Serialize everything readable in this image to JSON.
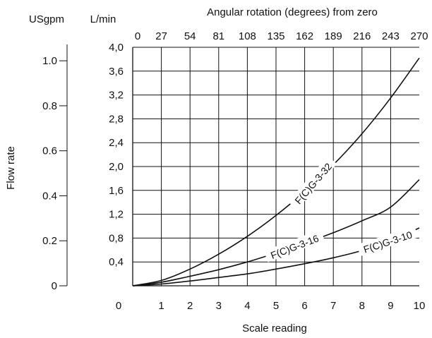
{
  "chart_data": {
    "type": "line",
    "title": "",
    "xlabel": "Scale reading",
    "x2label": "Angular rotation (degrees) from zero",
    "ylabel": "Flow rate",
    "y_left_unit": "USgpm",
    "y_right_unit": "L/min",
    "xlim": [
      0,
      10
    ],
    "ylim": [
      0,
      4.0
    ],
    "grid": true,
    "x_ticks": [
      "0",
      "1",
      "2",
      "3",
      "4",
      "5",
      "6",
      "7",
      "8",
      "9",
      "10"
    ],
    "x2_ticks": [
      "0",
      "27",
      "54",
      "81",
      "108",
      "135",
      "162",
      "189",
      "216",
      "243",
      "270"
    ],
    "y_ticks": [
      "0,4",
      "0,8",
      "1,2",
      "1,6",
      "2,0",
      "2,4",
      "2,8",
      "3,2",
      "3,6",
      "4,0"
    ],
    "usgpm_ticks": [
      {
        "label": "0",
        "value": 0
      },
      {
        "label": "0.2",
        "value": 0.2
      },
      {
        "label": "0.4",
        "value": 0.4
      },
      {
        "label": "0.6",
        "value": 0.6
      },
      {
        "label": "0.8",
        "value": 0.8
      },
      {
        "label": "1.0",
        "value": 1.0
      }
    ],
    "series": [
      {
        "name": "F(C)G-3-32",
        "x": [
          0,
          1,
          2,
          3,
          4,
          5,
          6,
          7,
          8,
          9,
          10
        ],
        "y": [
          0,
          0.09,
          0.28,
          0.53,
          0.83,
          1.18,
          1.58,
          2.03,
          2.55,
          3.15,
          3.82
        ],
        "label_at": 6.3,
        "label_angle": -49
      },
      {
        "name": "F(C)G-3-16",
        "x": [
          0,
          1,
          2,
          3,
          4,
          5,
          6,
          7,
          8,
          9,
          10
        ],
        "y": [
          0,
          0.06,
          0.16,
          0.27,
          0.4,
          0.55,
          0.71,
          0.89,
          1.09,
          1.32,
          1.78
        ],
        "label_at": 5.65,
        "label_angle": -21
      },
      {
        "name": "F(C)G-3-10",
        "x": [
          0,
          1,
          2,
          3,
          4,
          5,
          6,
          7,
          8,
          9,
          10
        ],
        "y": [
          0,
          0.03,
          0.08,
          0.14,
          0.2,
          0.28,
          0.37,
          0.47,
          0.59,
          0.75,
          0.97
        ],
        "label_at": 8.9,
        "label_angle": -18
      }
    ]
  }
}
